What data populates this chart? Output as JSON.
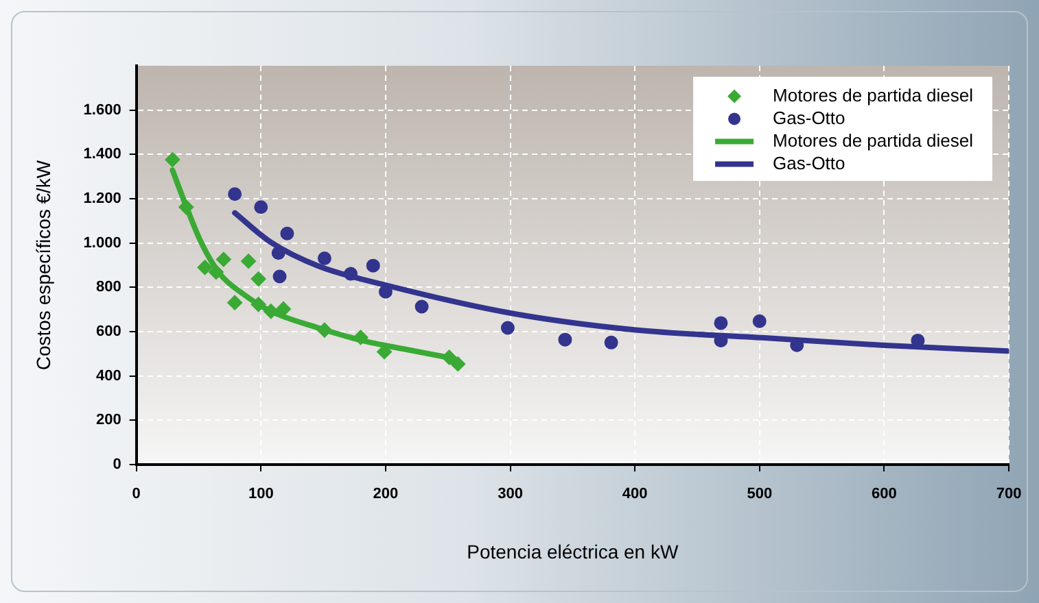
{
  "chart_data": {
    "type": "scatter",
    "xlabel": "Potencia eléctrica en kW",
    "ylabel": "Costos específicos €/kW",
    "xlim": [
      0,
      700
    ],
    "xticks": [
      0,
      100,
      200,
      300,
      400,
      500,
      600,
      700
    ],
    "ylim": [
      0,
      1800
    ],
    "yticks": [
      0,
      200,
      400,
      600,
      800,
      {
        "value": 1000,
        "label": "1.000"
      },
      {
        "value": 1200,
        "label": "1.200"
      },
      {
        "value": 1400,
        "label": "1.400"
      },
      {
        "value": 1600,
        "label": "1.600"
      }
    ],
    "grid": true,
    "legend": "top right",
    "series": [
      {
        "name": "Motores de partida diesel",
        "type": "scatter",
        "marker": "diamond",
        "color": "#3aaa35",
        "x": [
          29,
          40,
          55,
          64,
          70,
          90,
          98,
          79,
          98,
          108,
          118,
          151,
          180,
          199,
          251,
          258
        ],
        "values": [
          1376,
          1162,
          890,
          869,
          926,
          918,
          838,
          731,
          723,
          692,
          702,
          607,
          574,
          509,
          484,
          454
        ]
      },
      {
        "name": "Gas-Otto",
        "type": "scatter",
        "marker": "circle",
        "color": "#33348e",
        "x": [
          79,
          100,
          121,
          114,
          151,
          172,
          190,
          115,
          200,
          229,
          298,
          344,
          381,
          469,
          469,
          500,
          530,
          627
        ],
        "values": [
          1221,
          1162,
          1043,
          955,
          931,
          861,
          898,
          849,
          780,
          713,
          617,
          564,
          551,
          639,
          560,
          647,
          539,
          560
        ]
      },
      {
        "name": "Motores de partida diesel",
        "type": "line",
        "marker": "none",
        "color": "#3aaa35",
        "x": [
          29,
          40,
          52,
          67,
          86,
          108,
          146,
          184,
          221,
          255
        ],
        "values": [
          1329,
          1166,
          1003,
          861,
          769,
          692,
          617,
          556,
          515,
          478
        ]
      },
      {
        "name": "Gas-Otto",
        "type": "line",
        "marker": "none",
        "color": "#33348e",
        "x": [
          79,
          108,
          146,
          200,
          302,
          402,
          504,
          598,
          699
        ],
        "values": [
          1136,
          1003,
          896,
          810,
          682,
          607,
          572,
          539,
          513
        ]
      }
    ]
  }
}
